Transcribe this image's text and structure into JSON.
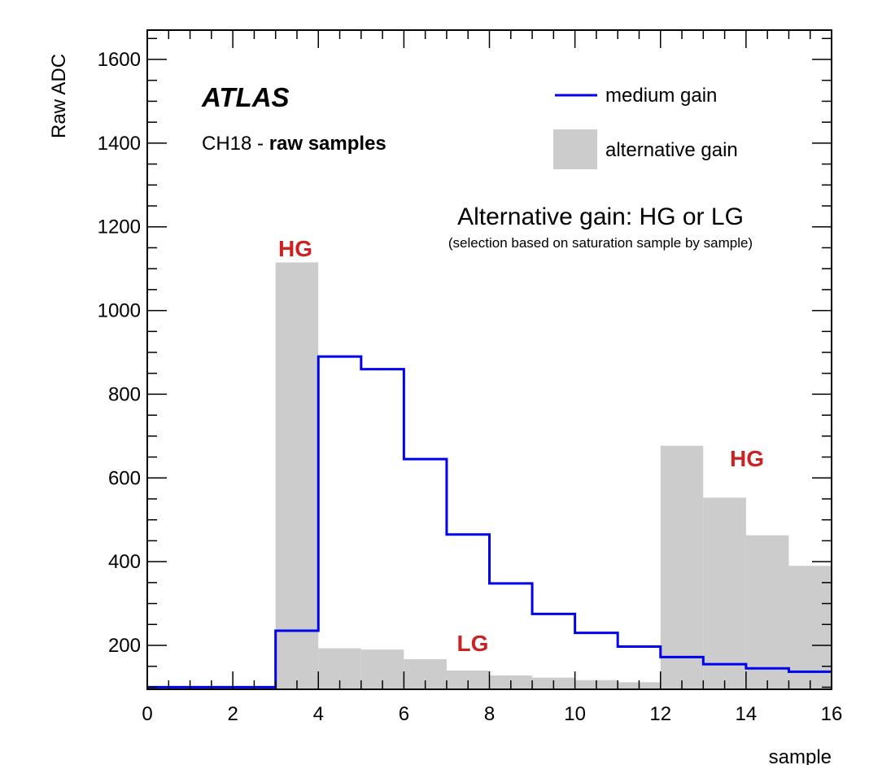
{
  "chart_data": {
    "type": "bar",
    "xlabel": "sample",
    "ylabel": "Raw ADC",
    "xlim": [
      0,
      16
    ],
    "ylim": [
      95,
      1670
    ],
    "x_ticks": [
      "0",
      "2",
      "4",
      "6",
      "8",
      "10",
      "12",
      "14",
      "16"
    ],
    "y_ticks": [
      "200",
      "400",
      "600",
      "800",
      "1000",
      "1200",
      "1400",
      "1600"
    ],
    "bin_edges": [
      0,
      1,
      2,
      3,
      4,
      5,
      6,
      7,
      8,
      9,
      10,
      11,
      12,
      13,
      14,
      15,
      16
    ],
    "series": [
      {
        "name": "medium gain",
        "style": "step-line",
        "color": "#0000ee",
        "values": [
          100,
          100,
          100,
          235,
          890,
          860,
          645,
          465,
          348,
          275,
          230,
          197,
          172,
          155,
          145,
          137
        ]
      },
      {
        "name": "alternative gain",
        "style": "filled-histogram",
        "color": "#cccccc",
        "values": [
          100,
          100,
          100,
          1115,
          193,
          190,
          167,
          140,
          128,
          123,
          117,
          112,
          677,
          553,
          463,
          390
        ]
      }
    ],
    "annotations": {
      "experiment": "ATLAS",
      "channel_prefix": "CH18 - ",
      "channel_bold": "raw samples",
      "gain_title": "Alternative gain: HG or LG",
      "gain_subtitle": "(selection based on saturation sample by sample)",
      "hg_label_1": "HG",
      "lg_label": "LG",
      "hg_label_2": "HG"
    },
    "colors": {
      "label_red": "#cc2222"
    },
    "legend_position": "top-right"
  }
}
